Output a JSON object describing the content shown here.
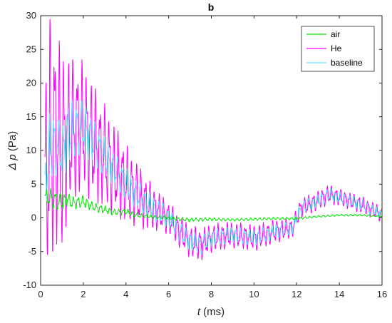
{
  "chart_data": {
    "type": "line",
    "title": "b",
    "xlabel_symbol": "t",
    "xlabel_unit": " (ms)",
    "ylabel_symbol": "Δ p",
    "ylabel_unit": " (Pa)",
    "xlim": [
      0,
      16
    ],
    "ylim": [
      -10,
      30
    ],
    "xticks": [
      "0",
      "2",
      "4",
      "6",
      "8",
      "10",
      "12",
      "14",
      "16"
    ],
    "yticks": [
      "-10",
      "-5",
      "0",
      "5",
      "10",
      "15",
      "20",
      "25",
      "30"
    ],
    "grid": false,
    "legend_position": "top-right",
    "series": [
      {
        "name": "air",
        "color": "#00e600",
        "x": [
          0.2,
          0.4,
          0.6,
          0.8,
          1.0,
          1.2,
          1.5,
          2.0,
          2.5,
          3.0,
          3.5,
          4.0,
          4.5,
          5.0,
          5.5,
          6.0,
          6.5,
          7.0,
          8.0,
          9.0,
          10.0,
          11.0,
          12.0,
          13.0,
          14.0,
          15.0,
          16.0
        ],
        "y": [
          3.2,
          3.0,
          2.8,
          2.4,
          2.2,
          2.8,
          2.2,
          2.4,
          1.6,
          1.2,
          0.8,
          0.9,
          0.4,
          0.2,
          0.1,
          0.0,
          -0.2,
          -0.3,
          -0.2,
          -0.3,
          -0.2,
          -0.1,
          -0.1,
          0.2,
          0.4,
          0.4,
          0.2
        ],
        "amp": [
          1.2,
          1.5,
          1.5,
          1.4,
          1.3,
          1.2,
          1.0,
          0.9,
          0.7,
          0.6,
          0.5,
          0.5,
          0.4,
          0.3,
          0.3,
          0.3,
          0.3,
          0.3,
          0.25,
          0.2,
          0.2,
          0.2,
          0.2,
          0.15,
          0.15,
          0.15,
          0.1
        ]
      },
      {
        "name": "He",
        "color": "#ff00ff",
        "x": [
          0.2,
          0.4,
          0.6,
          0.8,
          1.0,
          1.2,
          1.5,
          2.0,
          2.5,
          3.0,
          3.5,
          4.0,
          4.5,
          5.0,
          5.5,
          6.0,
          6.5,
          7.0,
          7.5,
          8.0,
          9.0,
          10.0,
          11.0,
          11.8,
          12.2,
          13.0,
          13.5,
          14.0,
          15.0,
          16.0
        ],
        "y": [
          5.0,
          10.0,
          12.0,
          11.0,
          9.0,
          12.0,
          13.0,
          13.5,
          11.0,
          9.0,
          7.0,
          5.0,
          3.5,
          2.0,
          1.0,
          0.0,
          -2.0,
          -3.5,
          -4.0,
          -3.0,
          -2.5,
          -3.0,
          -2.0,
          -1.5,
          1.5,
          2.5,
          3.5,
          3.0,
          2.0,
          0.5
        ],
        "amp": [
          15.0,
          20.0,
          18.0,
          16.0,
          17.0,
          13.0,
          11.0,
          10.0,
          9.0,
          8.0,
          7.0,
          6.0,
          5.0,
          4.0,
          3.0,
          2.5,
          2.5,
          2.5,
          2.5,
          2.2,
          2.0,
          2.0,
          1.8,
          1.5,
          1.5,
          1.5,
          1.5,
          1.3,
          1.3,
          1.2
        ]
      },
      {
        "name": "baseline",
        "color": "#66e0ff",
        "x": [
          0.2,
          0.4,
          0.6,
          0.8,
          1.0,
          1.2,
          1.5,
          2.0,
          2.5,
          3.0,
          3.5,
          4.0,
          4.5,
          5.0,
          5.5,
          6.0,
          6.5,
          7.0,
          7.5,
          8.0,
          9.0,
          10.0,
          11.0,
          11.8,
          12.2,
          13.0,
          13.5,
          14.0,
          15.0,
          16.0
        ],
        "y": [
          4.0,
          10.0,
          11.0,
          10.5,
          9.5,
          12.0,
          13.0,
          13.5,
          11.0,
          9.0,
          7.0,
          5.0,
          3.5,
          2.0,
          1.0,
          0.0,
          -2.0,
          -3.5,
          -4.0,
          -3.0,
          -2.5,
          -3.0,
          -2.0,
          -1.5,
          1.5,
          2.5,
          3.5,
          3.0,
          2.0,
          0.5
        ],
        "amp": [
          4.5,
          5.5,
          5.0,
          4.5,
          4.0,
          5.0,
          4.5,
          4.0,
          3.5,
          3.0,
          2.5,
          2.5,
          2.2,
          2.0,
          1.8,
          1.5,
          1.5,
          1.5,
          1.5,
          1.3,
          1.2,
          1.2,
          1.1,
          1.0,
          1.0,
          1.0,
          1.0,
          0.9,
          0.9,
          0.8
        ]
      }
    ]
  }
}
